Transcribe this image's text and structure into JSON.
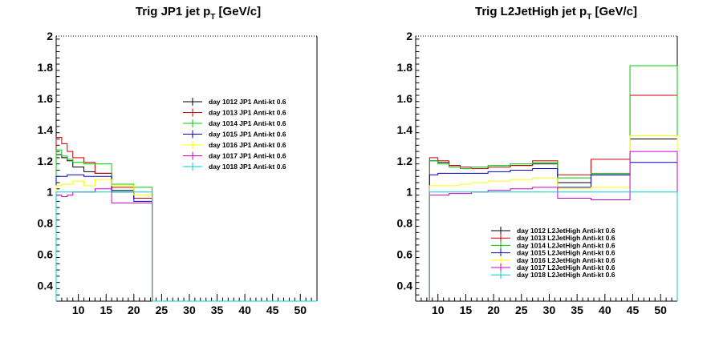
{
  "chart_data": [
    {
      "type": "line",
      "style": "step-histogram",
      "title": "Trig JP1 jet p_T [GeV/c]",
      "title_main": "Trig JP1 jet p",
      "title_sub": "T",
      "title_tail": " [GeV/c]",
      "xlabel": "",
      "ylabel": "",
      "xlim": [
        6,
        53
      ],
      "ylim": [
        0.3,
        2.0
      ],
      "xticks": [
        10,
        15,
        20,
        25,
        30,
        35,
        40,
        45,
        50
      ],
      "xtick_labels": [
        "10",
        "15",
        "20",
        "25",
        "30",
        "35",
        "40",
        "45",
        "50"
      ],
      "yticks": [
        0.4,
        0.6,
        0.8,
        1.0,
        1.2,
        1.4,
        1.6,
        1.8,
        2.0
      ],
      "ytick_labels": [
        "0.4",
        "0.6",
        "0.8",
        "1",
        "1.2",
        "1.4",
        "1.6",
        "1.8",
        "2"
      ],
      "bin_edges": [
        6,
        7,
        8,
        9,
        11,
        13,
        16,
        20,
        23.3
      ],
      "legend_position": "center-right",
      "series": [
        {
          "name": "day 1012 JP1 Anti-kt 0.6",
          "color": "#000000",
          "values": [
            1.24,
            1.22,
            1.2,
            1.16,
            1.13,
            1.12,
            1.01,
            0.96
          ]
        },
        {
          "name": "day 1013 JP1 Anti-kt 0.6",
          "color": "#cc0000",
          "values": [
            1.35,
            1.31,
            1.26,
            1.22,
            1.19,
            1.12,
            1.03,
            0.96
          ]
        },
        {
          "name": "day 1014 JP1 Anti-kt 0.6",
          "color": "#00cc00",
          "values": [
            1.27,
            1.23,
            1.21,
            1.19,
            1.18,
            1.18,
            1.05,
            1.03
          ]
        },
        {
          "name": "day 1015 JP1 Anti-kt 0.6",
          "color": "#0000cc",
          "values": [
            1.1,
            1.1,
            1.11,
            1.11,
            1.1,
            1.1,
            1.0,
            0.94
          ]
        },
        {
          "name": "day 1016 JP1 Anti-kt 0.6",
          "color": "#ffff00",
          "values": [
            1.04,
            1.05,
            1.05,
            1.07,
            1.04,
            1.08,
            1.04,
            0.98
          ]
        },
        {
          "name": "day 1017 JP1 Anti-kt 0.6",
          "color": "#cc00cc",
          "values": [
            0.98,
            0.97,
            0.98,
            1.0,
            1.0,
            1.02,
            0.93,
            0.93
          ]
        },
        {
          "name": "day 1018 JP1 Anti-kt 0.6",
          "color": "#00cccc",
          "values": [
            1.0,
            1.0,
            1.0,
            1.0,
            1.0,
            1.0,
            1.0,
            1.0
          ]
        }
      ]
    },
    {
      "type": "line",
      "style": "step-histogram",
      "title": "Trig L2JetHigh jet p_T [GeV/c]",
      "title_main": "Trig L2JetHigh jet p",
      "title_sub": "T",
      "title_tail": " [GeV/c]",
      "xlabel": "",
      "ylabel": "",
      "xlim": [
        6,
        53
      ],
      "ylim": [
        0.3,
        2.0
      ],
      "xticks": [
        10,
        15,
        20,
        25,
        30,
        35,
        40,
        45,
        50
      ],
      "xtick_labels": [
        "10",
        "15",
        "20",
        "25",
        "30",
        "35",
        "40",
        "45",
        "50"
      ],
      "yticks": [
        0.4,
        0.6,
        0.8,
        1.0,
        1.2,
        1.4,
        1.6,
        1.8,
        2.0
      ],
      "ytick_labels": [
        "0.4",
        "0.6",
        "0.8",
        "1",
        "1.2",
        "1.4",
        "1.6",
        "1.8",
        "2"
      ],
      "bin_edges": [
        8.5,
        10,
        12,
        14,
        16,
        19,
        23,
        27,
        31.5,
        37.5,
        44.5,
        53
      ],
      "legend_position": "bottom-center",
      "series": [
        {
          "name": "day 1012 L2JetHigh Anti-kt 0.6",
          "color": "#000000",
          "values": [
            1.2,
            1.19,
            1.17,
            1.16,
            1.15,
            1.16,
            1.17,
            1.18,
            1.06,
            1.11,
            1.34
          ]
        },
        {
          "name": "day 1013 L2JetHigh Anti-kt 0.6",
          "color": "#cc0000",
          "values": [
            1.22,
            1.2,
            1.17,
            1.16,
            1.15,
            1.16,
            1.17,
            1.2,
            1.11,
            1.21,
            1.62
          ]
        },
        {
          "name": "day 1014 L2JetHigh Anti-kt 0.6",
          "color": "#00cc00",
          "values": [
            1.2,
            1.18,
            1.16,
            1.15,
            1.16,
            1.17,
            1.18,
            1.19,
            1.09,
            1.12,
            1.81
          ]
        },
        {
          "name": "day 1015 L2JetHigh Anti-kt 0.6",
          "color": "#0000cc",
          "values": [
            1.11,
            1.12,
            1.12,
            1.12,
            1.12,
            1.13,
            1.14,
            1.15,
            1.03,
            1.11,
            1.19
          ]
        },
        {
          "name": "day 1016 L2JetHigh Anti-kt 0.6",
          "color": "#ffff00",
          "values": [
            1.04,
            1.04,
            1.04,
            1.05,
            1.06,
            1.07,
            1.08,
            1.09,
            1.02,
            1.03,
            1.36
          ]
        },
        {
          "name": "day 1017 L2JetHigh Anti-kt 0.6",
          "color": "#cc00cc",
          "values": [
            0.98,
            0.98,
            0.99,
            0.99,
            1.0,
            1.01,
            1.02,
            1.03,
            0.96,
            0.95,
            1.26
          ]
        },
        {
          "name": "day 1018 L2JetHigh Anti-kt 0.6",
          "color": "#00cccc",
          "values": [
            1.0,
            1.0,
            1.0,
            1.0,
            1.0,
            1.0,
            1.0,
            1.0,
            1.0,
            1.0,
            1.0
          ]
        }
      ]
    }
  ]
}
